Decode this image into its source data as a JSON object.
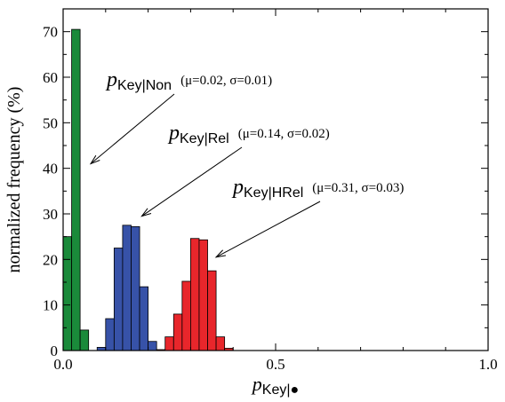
{
  "chart_data": {
    "type": "histogram",
    "xlabel": {
      "symbol": "p",
      "subscript": "Key|●"
    },
    "ylabel": "normalized frequency (%)",
    "xlim": [
      0.0,
      1.0
    ],
    "ylim": [
      0,
      75
    ],
    "xticks": [
      "0.0",
      "0.5",
      "1.0"
    ],
    "yticks": [
      "0",
      "10",
      "20",
      "30",
      "40",
      "50",
      "60",
      "70"
    ],
    "xtick_values": [
      0.0,
      0.5,
      1.0
    ],
    "ytick_values": [
      0,
      10,
      20,
      30,
      40,
      50,
      60,
      70
    ],
    "grid": false,
    "bin_width": 0.02,
    "series": [
      {
        "name": "p_Key|Non",
        "color": "#1a8a3a",
        "bins": [
          {
            "x0": 0.0,
            "x1": 0.02,
            "value": 25
          },
          {
            "x0": 0.02,
            "x1": 0.04,
            "value": 70.5
          },
          {
            "x0": 0.04,
            "x1": 0.06,
            "value": 4.5
          }
        ]
      },
      {
        "name": "p_Key|Rel",
        "color": "#3752a8",
        "bins": [
          {
            "x0": 0.08,
            "x1": 0.1,
            "value": 0.7
          },
          {
            "x0": 0.1,
            "x1": 0.12,
            "value": 7
          },
          {
            "x0": 0.12,
            "x1": 0.14,
            "value": 22.5
          },
          {
            "x0": 0.14,
            "x1": 0.16,
            "value": 27.5
          },
          {
            "x0": 0.16,
            "x1": 0.18,
            "value": 27.2
          },
          {
            "x0": 0.18,
            "x1": 0.2,
            "value": 14
          },
          {
            "x0": 0.2,
            "x1": 0.22,
            "value": 2
          }
        ]
      },
      {
        "name": "p_Key|HRel",
        "color": "#e8262b",
        "bins": [
          {
            "x0": 0.22,
            "x1": 0.24,
            "value": 0.2
          },
          {
            "x0": 0.24,
            "x1": 0.26,
            "value": 3
          },
          {
            "x0": 0.26,
            "x1": 0.28,
            "value": 8
          },
          {
            "x0": 0.28,
            "x1": 0.3,
            "value": 15.2
          },
          {
            "x0": 0.3,
            "x1": 0.32,
            "value": 24.6
          },
          {
            "x0": 0.32,
            "x1": 0.34,
            "value": 24.3
          },
          {
            "x0": 0.34,
            "x1": 0.36,
            "value": 17.5
          },
          {
            "x0": 0.36,
            "x1": 0.38,
            "value": 3
          },
          {
            "x0": 0.38,
            "x1": 0.4,
            "value": 0.5
          }
        ]
      }
    ],
    "annotations": [
      {
        "symbol": "p",
        "subscript": "Key|Non",
        "params": "(μ=0.02, σ=0.01)",
        "arrow_target": {
          "x": 0.065,
          "y": 41
        }
      },
      {
        "symbol": "p",
        "subscript": "Key|Rel",
        "params": "(μ=0.14, σ=0.02)",
        "arrow_target": {
          "x": 0.185,
          "y": 29.5
        }
      },
      {
        "symbol": "p",
        "subscript": "Key|HRel",
        "params": "(μ=0.31, σ=0.03)",
        "arrow_target": {
          "x": 0.36,
          "y": 20.5
        }
      }
    ]
  }
}
